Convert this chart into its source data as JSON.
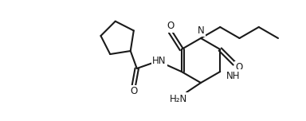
{
  "bg_color": "#ffffff",
  "line_color": "#1a1a1a",
  "line_width": 1.5,
  "font_size": 8.5,
  "figsize": [
    3.84,
    1.52
  ],
  "dpi": 100,
  "xlim": [
    0,
    384
  ],
  "ylim": [
    0,
    152
  ]
}
